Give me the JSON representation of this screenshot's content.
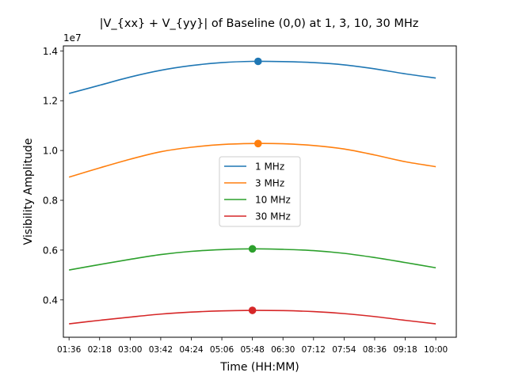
{
  "chart_data": {
    "type": "line",
    "title": "|V_{xx} + V_{yy}| of Baseline (0,0) at 1, 3, 10, 30 MHz",
    "xlabel": "Time (HH:MM)",
    "ylabel": "Visibility Amplitude",
    "y_scale_label": "1e7",
    "x_range_hours": [
      1.47,
      10.47
    ],
    "ylim": [
      0.25,
      1.42
    ],
    "x_ticks": [
      {
        "label": "01:36",
        "hours": 1.6
      },
      {
        "label": "02:18",
        "hours": 2.3
      },
      {
        "label": "03:00",
        "hours": 3.0
      },
      {
        "label": "03:42",
        "hours": 3.7
      },
      {
        "label": "04:24",
        "hours": 4.4
      },
      {
        "label": "05:06",
        "hours": 5.1
      },
      {
        "label": "05:48",
        "hours": 5.8
      },
      {
        "label": "06:30",
        "hours": 6.5
      },
      {
        "label": "07:12",
        "hours": 7.2
      },
      {
        "label": "07:54",
        "hours": 7.9
      },
      {
        "label": "08:36",
        "hours": 8.6
      },
      {
        "label": "09:18",
        "hours": 9.3
      },
      {
        "label": "10:00",
        "hours": 10.0
      }
    ],
    "y_ticks": [
      0.4,
      0.6,
      0.8,
      1.0,
      1.2,
      1.4
    ],
    "legend_position": "center",
    "grid": false,
    "series": [
      {
        "name": "1 MHz",
        "color": "#1f77b4",
        "x": [
          1.6,
          2.3,
          3.0,
          3.7,
          4.4,
          5.1,
          5.8,
          6.5,
          7.2,
          7.9,
          8.6,
          9.3,
          10.0
        ],
        "y": [
          1.229,
          1.262,
          1.295,
          1.322,
          1.341,
          1.353,
          1.358,
          1.357,
          1.353,
          1.344,
          1.328,
          1.308,
          1.291
        ],
        "marker": {
          "x": 5.93,
          "y": 1.358
        }
      },
      {
        "name": "3 MHz",
        "color": "#ff7f0e",
        "x": [
          1.6,
          2.3,
          3.0,
          3.7,
          4.4,
          5.1,
          5.8,
          6.5,
          7.2,
          7.9,
          8.6,
          9.3,
          10.0
        ],
        "y": [
          0.893,
          0.93,
          0.965,
          0.995,
          1.013,
          1.024,
          1.028,
          1.027,
          1.02,
          1.006,
          0.982,
          0.955,
          0.935
        ],
        "marker": {
          "x": 5.93,
          "y": 1.028
        }
      },
      {
        "name": "10 MHz",
        "color": "#2ca02c",
        "x": [
          1.6,
          2.3,
          3.0,
          3.7,
          4.4,
          5.1,
          5.8,
          6.5,
          7.2,
          7.9,
          8.6,
          9.3,
          10.0
        ],
        "y": [
          0.52,
          0.542,
          0.563,
          0.582,
          0.595,
          0.602,
          0.605,
          0.603,
          0.598,
          0.587,
          0.57,
          0.55,
          0.529
        ],
        "marker": {
          "x": 5.8,
          "y": 0.605
        }
      },
      {
        "name": "30 MHz",
        "color": "#d62728",
        "x": [
          1.6,
          2.3,
          3.0,
          3.7,
          4.4,
          5.1,
          5.8,
          6.5,
          7.2,
          7.9,
          8.6,
          9.3,
          10.0
        ],
        "y": [
          0.304,
          0.318,
          0.331,
          0.343,
          0.351,
          0.356,
          0.358,
          0.357,
          0.353,
          0.345,
          0.333,
          0.318,
          0.304
        ],
        "marker": {
          "x": 5.8,
          "y": 0.358
        }
      }
    ]
  }
}
